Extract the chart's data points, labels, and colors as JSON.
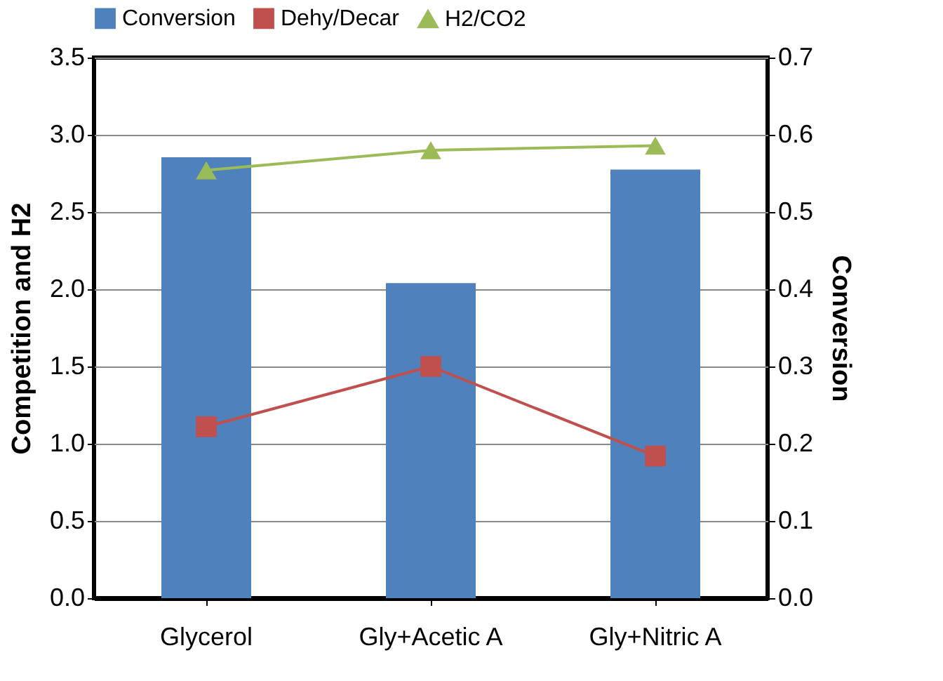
{
  "chart_data": {
    "type": "bar",
    "categories": [
      "Glycerol",
      "Gly+Acetic A",
      "Gly+Nitric A"
    ],
    "ylabel": "Competition and H2",
    "y2label": "Conversion",
    "ylim": [
      0,
      3.5
    ],
    "yticks": [
      {
        "value": 0,
        "label": "0.0"
      },
      0.5,
      {
        "value": 1,
        "label": "1.0"
      },
      1.5,
      {
        "value": 2,
        "label": "2.0"
      },
      2.5,
      {
        "value": 3,
        "label": "3.0"
      },
      3.5
    ],
    "y2lim": [
      0,
      0.7
    ],
    "y2ticks": [
      {
        "value": 0,
        "label": "0.0"
      },
      0.1,
      0.2,
      0.3,
      0.4,
      0.5,
      0.6,
      0.7
    ],
    "grid": "y",
    "legend": "top",
    "series": [
      {
        "name": "Conversion",
        "axis": "y2",
        "color": "#4f81bd",
        "values": [
          0.571,
          0.408,
          0.555
        ]
      },
      {
        "name": "Dehy/Decar",
        "type": "line",
        "marker": "square",
        "color": "#c0504d",
        "values": [
          1.11,
          1.5,
          0.92
        ]
      },
      {
        "name": "H2/CO2",
        "type": "line",
        "marker": "triangle",
        "color": "#9bbb59",
        "values": [
          2.77,
          2.9,
          2.93
        ]
      }
    ]
  }
}
